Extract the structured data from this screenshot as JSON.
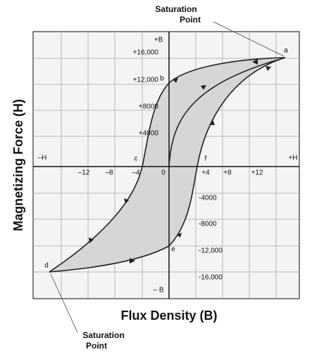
{
  "axes": {
    "x_title": "Flux Density (B)",
    "y_title": "Magnetizing Force (H)",
    "plus_b": "+B",
    "minus_b": "– B",
    "minus_h": "–H",
    "plus_h": "+H",
    "x_ticks": [
      "–12",
      "–8",
      "–4",
      "0",
      "+4",
      "+8",
      "+12"
    ],
    "y_ticks_positive": [
      "+16,000",
      "+12,000",
      "+8000",
      "+4000"
    ],
    "y_ticks_negative": [
      "-4000",
      "-8000",
      "-12,000",
      "-16,000"
    ]
  },
  "points": {
    "a": "a",
    "b": "b",
    "c": "c",
    "d": "d",
    "e": "e",
    "f": "f"
  },
  "callouts": {
    "top": [
      "Saturation",
      "Point"
    ],
    "bottom": [
      "Saturation",
      "Point"
    ]
  }
}
